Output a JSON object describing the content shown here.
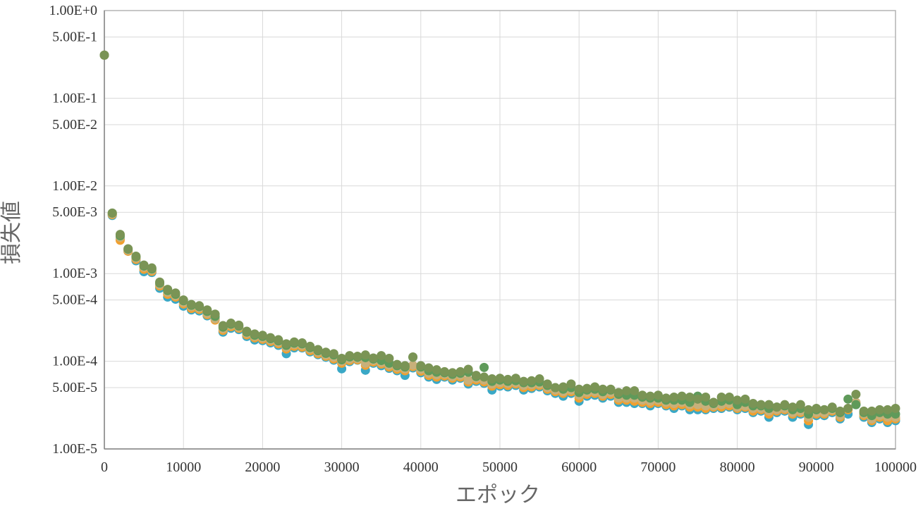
{
  "chart_data": {
    "type": "scatter",
    "title": "",
    "xlabel": "エポック",
    "ylabel": "損失値",
    "xlim": [
      0,
      100000
    ],
    "ylim": [
      1e-05,
      1
    ],
    "y_scale": "log",
    "grid": true,
    "x_ticks": [
      0,
      10000,
      20000,
      30000,
      40000,
      50000,
      60000,
      70000,
      80000,
      90000,
      100000
    ],
    "x_tick_labels": [
      "0",
      "10000",
      "20000",
      "30000",
      "40000",
      "50000",
      "60000",
      "70000",
      "80000",
      "90000",
      "100000"
    ],
    "y_ticks": [
      1,
      0.5,
      0.1,
      0.05,
      0.01,
      0.005,
      0.001,
      0.0005,
      0.0001,
      5e-05,
      1e-05
    ],
    "y_tick_labels": [
      "1.00E+0",
      "5.00E-1",
      "1.00E-1",
      "5.00E-2",
      "1.00E-2",
      "5.00E-3",
      "1.00E-3",
      "5.00E-4",
      "1.00E-4",
      "5.00E-5",
      "1.00E-5"
    ],
    "x": [
      0,
      1000,
      2000,
      3000,
      4000,
      5000,
      6000,
      7000,
      8000,
      9000,
      10000,
      11000,
      12000,
      13000,
      14000,
      15000,
      16000,
      17000,
      18000,
      19000,
      20000,
      21000,
      22000,
      23000,
      24000,
      25000,
      26000,
      27000,
      28000,
      29000,
      30000,
      31000,
      32000,
      33000,
      34000,
      35000,
      36000,
      37000,
      38000,
      39000,
      40000,
      41000,
      42000,
      43000,
      44000,
      45000,
      46000,
      47000,
      48000,
      49000,
      50000,
      51000,
      52000,
      53000,
      54000,
      55000,
      56000,
      57000,
      58000,
      59000,
      60000,
      61000,
      62000,
      63000,
      64000,
      65000,
      66000,
      67000,
      68000,
      69000,
      70000,
      71000,
      72000,
      73000,
      74000,
      75000,
      76000,
      77000,
      78000,
      79000,
      80000,
      81000,
      82000,
      83000,
      84000,
      85000,
      86000,
      87000,
      88000,
      89000,
      90000,
      91000,
      92000,
      93000,
      94000,
      95000,
      96000,
      97000,
      98000,
      99000,
      100000
    ],
    "series": [
      {
        "color": "#3aa8c6",
        "values": [
          0.31,
          0.0046,
          0.0025,
          0.0018,
          0.0014,
          0.00105,
          0.00103,
          0.00068,
          0.00054,
          0.00051,
          0.000425,
          0.000385,
          0.000375,
          0.00033,
          0.00031,
          0.000215,
          0.000238,
          0.00023,
          0.000192,
          0.000175,
          0.000172,
          0.000162,
          0.000152,
          0.000122,
          0.000142,
          0.000142,
          0.000128,
          0.000119,
          0.000111,
          0.000103,
          8.2e-05,
          9.9e-05,
          0.000103,
          7.9e-05,
          9.5e-05,
          8.9e-05,
          8.3e-05,
          7.8e-05,
          6.9e-05,
          8.4e-05,
          7.4e-05,
          6.6e-05,
          6.2e-05,
          6.6e-05,
          6.1e-05,
          6.4e-05,
          5.5e-05,
          5.9e-05,
          5.6e-05,
          4.7e-05,
          5.2e-05,
          5.1e-05,
          5.3e-05,
          4.7e-05,
          4.9e-05,
          5.1e-05,
          4.6e-05,
          4.3e-05,
          4e-05,
          4.3e-05,
          3.5e-05,
          4e-05,
          4.1e-05,
          3.8e-05,
          4e-05,
          3.4e-05,
          3.4e-05,
          3.3e-05,
          3.3e-05,
          3.1e-05,
          3.3e-05,
          3.1e-05,
          2.9e-05,
          3.1e-05,
          2.8e-05,
          2.8e-05,
          2.8e-05,
          2.9e-05,
          2.9e-05,
          3e-05,
          2.8e-05,
          2.9e-05,
          2.6e-05,
          2.7e-05,
          2.3e-05,
          2.6e-05,
          2.7e-05,
          2.3e-05,
          2.5e-05,
          1.9e-05,
          2.4e-05,
          2.4e-05,
          2.6e-05,
          2.2e-05,
          2.5e-05,
          3.2e-05,
          2.3e-05,
          2e-05,
          2.2e-05,
          2e-05,
          2.1e-05
        ]
      },
      {
        "color": "#f0a030",
        "values": [
          0.31,
          0.0047,
          0.0024,
          0.0018,
          0.00145,
          0.00112,
          0.00106,
          0.00072,
          0.00058,
          0.00054,
          0.00045,
          0.0004,
          0.00039,
          0.00034,
          0.000295,
          0.000225,
          0.000248,
          0.000238,
          0.0002,
          0.000185,
          0.000178,
          0.000168,
          0.000158,
          0.000138,
          0.000148,
          0.000145,
          0.000132,
          0.000122,
          0.000114,
          0.000106,
          9.5e-05,
          0.000102,
          0.000104,
          9e-05,
          9.8e-05,
          9.3e-05,
          8.6e-05,
          8.1e-05,
          7.8e-05,
          8.7e-05,
          7.7e-05,
          6.9e-05,
          6.6e-05,
          6.8e-05,
          6.4e-05,
          6.6e-05,
          5.8e-05,
          6.1e-05,
          5.8e-05,
          5.2e-05,
          5.4e-05,
          5.3e-05,
          5.5e-05,
          5e-05,
          5.1e-05,
          5.3e-05,
          4.8e-05,
          4.5e-05,
          4.3e-05,
          4.5e-05,
          3.8e-05,
          4.2e-05,
          4.3e-05,
          4e-05,
          4.2e-05,
          3.6e-05,
          3.6e-05,
          3.5e-05,
          3.4e-05,
          3.3e-05,
          3.4e-05,
          3.2e-05,
          3.1e-05,
          3.2e-05,
          3e-05,
          3e-05,
          2.9e-05,
          3e-05,
          3e-05,
          3.1e-05,
          2.9e-05,
          3e-05,
          2.7e-05,
          2.8e-05,
          2.5e-05,
          2.7e-05,
          2.8e-05,
          2.5e-05,
          2.6e-05,
          2.1e-05,
          2.5e-05,
          2.5e-05,
          2.7e-05,
          2.3e-05,
          2.8e-05,
          3.3e-05,
          2.4e-05,
          2.1e-05,
          2.3e-05,
          2.1e-05,
          2.2e-05
        ]
      },
      {
        "color": "#c8b07a",
        "values": [
          0.31,
          0.0048,
          0.0026,
          0.00185,
          0.0015,
          0.00118,
          0.0011,
          0.00075,
          0.00061,
          0.00056,
          0.00047,
          0.00042,
          0.000405,
          0.00035,
          0.000305,
          0.000235,
          0.000258,
          0.000245,
          0.000208,
          0.000192,
          0.000185,
          0.000175,
          0.000165,
          0.000145,
          0.000155,
          0.000152,
          0.000138,
          0.000127,
          0.000118,
          0.000111,
          0.0001,
          0.000106,
          0.000107,
          9.5e-05,
          0.000102,
          9.7e-05,
          9e-05,
          8.5e-05,
          8.2e-05,
          9e-05,
          8.1e-05,
          7.3e-05,
          7e-05,
          7.1e-05,
          6.7e-05,
          6.9e-05,
          6.1e-05,
          6.4e-05,
          6.1e-05,
          5.5e-05,
          5.7e-05,
          5.6e-05,
          5.7e-05,
          5.3e-05,
          5.4e-05,
          5.5e-05,
          5e-05,
          4.7e-05,
          4.5e-05,
          4.7e-05,
          4.1e-05,
          4.4e-05,
          4.5e-05,
          4.2e-05,
          4.4e-05,
          3.8e-05,
          3.8e-05,
          3.8e-05,
          3.6e-05,
          3.5e-05,
          3.6e-05,
          3.4e-05,
          3.3e-05,
          3.4e-05,
          3.2e-05,
          3.2e-05,
          3.1e-05,
          3.1e-05,
          3.2e-05,
          3.3e-05,
          3e-05,
          3.1e-05,
          2.9e-05,
          2.9e-05,
          2.7e-05,
          2.8e-05,
          2.9e-05,
          2.6e-05,
          2.7e-05,
          2.3e-05,
          2.6e-05,
          2.6e-05,
          2.8e-05,
          2.4e-05,
          2.9e-05,
          3.4e-05,
          2.5e-05,
          2.2e-05,
          2.4e-05,
          2.3e-05,
          2.3e-05
        ]
      },
      {
        "color": "#5f9a5a",
        "values": [
          0.31,
          0.0049,
          0.0027,
          0.0019,
          0.00155,
          0.00122,
          0.00113,
          0.00078,
          0.00064,
          0.00058,
          0.00049,
          0.000435,
          0.00042,
          0.00037,
          0.000325,
          0.000245,
          0.000265,
          0.000252,
          0.000215,
          0.000198,
          0.000192,
          0.000181,
          0.000171,
          0.000152,
          0.000161,
          0.000158,
          0.000143,
          0.000132,
          0.000123,
          0.000118,
          0.000104,
          0.000112,
          0.000111,
          0.00011,
          0.000106,
          0.000102,
          9.5e-05,
          8.9e-05,
          8.6e-05,
          0.000111,
          8.6e-05,
          7.8e-05,
          7.5e-05,
          7.4e-05,
          7.1e-05,
          7.3e-05,
          7.5e-05,
          6.7e-05,
          8.5e-05,
          5.9e-05,
          6.1e-05,
          5.9e-05,
          6e-05,
          5.7e-05,
          5.7e-05,
          5.8e-05,
          5.3e-05,
          5e-05,
          4.8e-05,
          5e-05,
          4.4e-05,
          4.7e-05,
          4.8e-05,
          4.5e-05,
          4.7e-05,
          4.2e-05,
          4.1e-05,
          4.1e-05,
          3.9e-05,
          3.8e-05,
          3.8e-05,
          3.6e-05,
          3.6e-05,
          3.6e-05,
          3.4e-05,
          4e-05,
          3.5e-05,
          3.3e-05,
          3.5e-05,
          3.6e-05,
          3.2e-05,
          3.4e-05,
          3.1e-05,
          3.1e-05,
          2.9e-05,
          3e-05,
          3.1e-05,
          2.8e-05,
          2.9e-05,
          2.5e-05,
          2.8e-05,
          2.8e-05,
          2.9e-05,
          2.6e-05,
          3.7e-05,
          3.2e-05,
          2.6e-05,
          2.4e-05,
          2.6e-05,
          2.5e-05,
          2.5e-05
        ]
      },
      {
        "color": "#7a9455",
        "values": [
          0.31,
          0.0049,
          0.0028,
          0.00192,
          0.00158,
          0.00125,
          0.00116,
          0.0008,
          0.00066,
          0.0006,
          0.0005,
          0.000445,
          0.00043,
          0.000385,
          0.000345,
          0.000255,
          0.000272,
          0.000258,
          0.00022,
          0.000205,
          0.000198,
          0.000186,
          0.000176,
          0.000158,
          0.000166,
          0.000162,
          0.000148,
          0.000136,
          0.000127,
          0.000122,
          0.000108,
          0.000116,
          0.000114,
          0.000118,
          0.000109,
          0.000116,
          0.000108,
          9.2e-05,
          8.9e-05,
          0.000112,
          8.9e-05,
          8.4e-05,
          8e-05,
          7.6e-05,
          7.4e-05,
          7.6e-05,
          8.1e-05,
          6.9e-05,
          6.6e-05,
          6.3e-05,
          6.4e-05,
          6.2e-05,
          6.4e-05,
          5.9e-05,
          6e-05,
          6.3e-05,
          5.5e-05,
          5e-05,
          5.1e-05,
          5.5e-05,
          4.8e-05,
          4.9e-05,
          5.1e-05,
          4.8e-05,
          4.8e-05,
          4.4e-05,
          4.6e-05,
          4.6e-05,
          4.1e-05,
          4e-05,
          4.1e-05,
          3.8e-05,
          3.9e-05,
          4e-05,
          3.9e-05,
          3.7e-05,
          3.9e-05,
          3.4e-05,
          3.9e-05,
          3.9e-05,
          3.6e-05,
          3.7e-05,
          3.3e-05,
          3.2e-05,
          3.2e-05,
          3e-05,
          3.2e-05,
          3e-05,
          3.2e-05,
          2.8e-05,
          2.9e-05,
          2.8e-05,
          3e-05,
          2.7e-05,
          2.9e-05,
          4.2e-05,
          2.7e-05,
          2.7e-05,
          2.8e-05,
          2.8e-05,
          2.9e-05
        ]
      }
    ]
  }
}
